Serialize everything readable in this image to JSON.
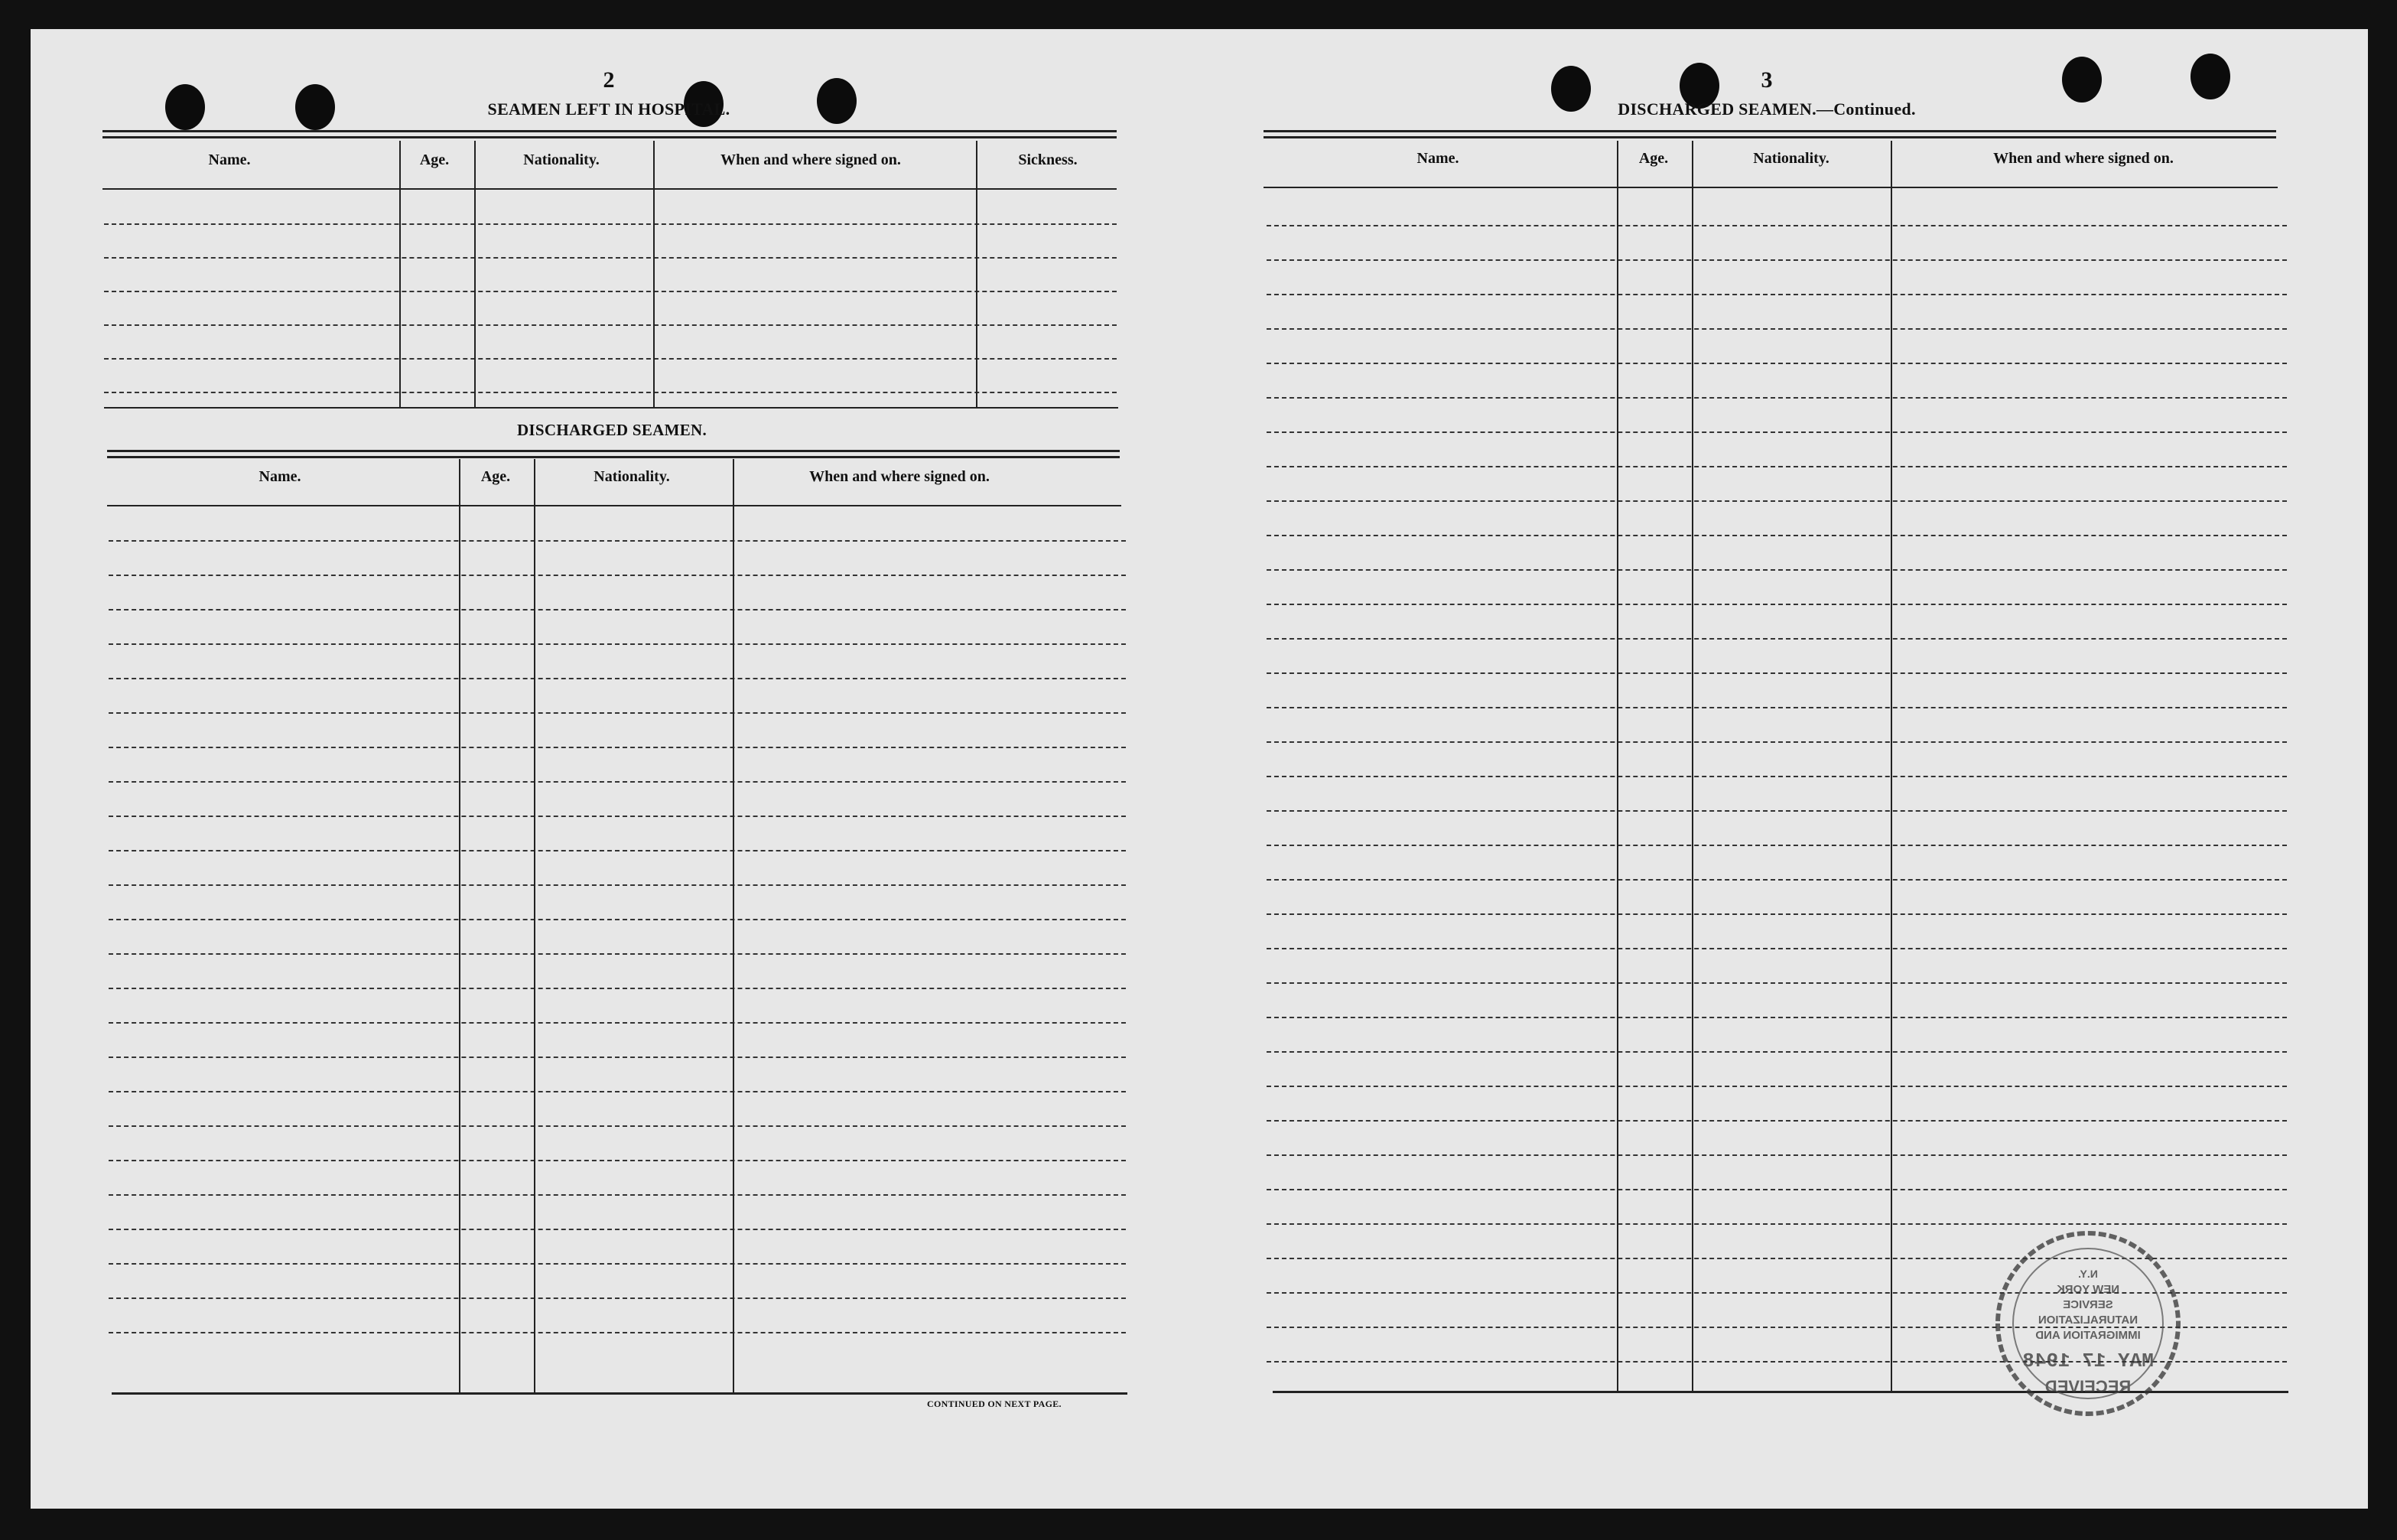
{
  "left_page": {
    "page_number": "2",
    "hospital_section": {
      "title": "SEAMEN LEFT IN HOSPITAL.",
      "columns": [
        "Name.",
        "Age.",
        "Nationality.",
        "When and where signed on.",
        "Sickness."
      ],
      "rows": []
    },
    "discharged_section": {
      "title": "DISCHARGED SEAMEN.",
      "columns": [
        "Name.",
        "Age.",
        "Nationality.",
        "When and where signed on."
      ],
      "rows": []
    },
    "footer": "CONTINUED ON NEXT PAGE."
  },
  "right_page": {
    "page_number": "3",
    "discharged_section": {
      "title": "DISCHARGED SEAMEN.—Continued.",
      "columns": [
        "Name.",
        "Age.",
        "Nationality.",
        "When and where signed on."
      ],
      "rows": []
    }
  },
  "stamp": {
    "lines": [
      "RECEIVED",
      "MAY 17 1948",
      "IMMIGRATION AND",
      "NATURALIZATION",
      "SERVICE",
      "NEW YORK",
      "N.Y."
    ]
  },
  "colors": {
    "paper": "#e7e7e7",
    "ink": "#111111",
    "background": "#111111"
  }
}
